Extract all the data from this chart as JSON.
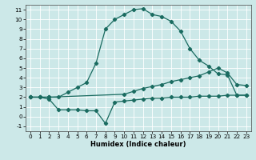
{
  "title": "",
  "xlabel": "Humidex (Indice chaleur)",
  "ylabel": "",
  "bg_color": "#cce8e8",
  "grid_color": "#ffffff",
  "line_color": "#1a6b60",
  "xlim": [
    -0.5,
    23.5
  ],
  "ylim": [
    -1.5,
    11.5
  ],
  "xticks": [
    0,
    1,
    2,
    3,
    4,
    5,
    6,
    7,
    8,
    9,
    10,
    11,
    12,
    13,
    14,
    15,
    16,
    17,
    18,
    19,
    20,
    21,
    22,
    23
  ],
  "yticks": [
    -1,
    0,
    1,
    2,
    3,
    4,
    5,
    6,
    7,
    8,
    9,
    10,
    11
  ],
  "curve1_x": [
    0,
    1,
    2,
    3,
    4,
    5,
    6,
    7,
    8,
    9,
    10,
    11,
    12,
    13,
    14,
    15,
    16,
    17,
    18,
    19,
    20,
    21,
    22,
    23
  ],
  "curve1_y": [
    2.0,
    2.0,
    2.0,
    2.0,
    2.5,
    3.0,
    3.5,
    5.5,
    9.0,
    10.0,
    10.5,
    11.0,
    11.1,
    10.5,
    10.3,
    9.8,
    8.8,
    7.0,
    5.8,
    5.2,
    4.4,
    4.3,
    2.2,
    2.2
  ],
  "curve2_x": [
    0,
    1,
    2,
    10,
    11,
    12,
    13,
    14,
    15,
    16,
    17,
    18,
    19,
    20,
    21,
    22,
    23
  ],
  "curve2_y": [
    2.0,
    2.0,
    2.0,
    2.3,
    2.6,
    2.9,
    3.1,
    3.3,
    3.6,
    3.8,
    4.0,
    4.2,
    4.6,
    5.0,
    4.5,
    3.3,
    3.2
  ],
  "curve3_x": [
    0,
    1,
    2,
    3,
    4,
    5,
    6,
    7,
    8,
    9,
    10,
    11,
    12,
    13,
    14,
    15,
    16,
    17,
    18,
    19,
    20,
    21,
    22,
    23
  ],
  "curve3_y": [
    2.0,
    2.0,
    1.8,
    0.7,
    0.7,
    0.7,
    0.6,
    0.6,
    -0.7,
    1.5,
    1.6,
    1.7,
    1.8,
    1.9,
    1.9,
    2.0,
    2.0,
    2.0,
    2.1,
    2.1,
    2.1,
    2.2,
    2.2,
    2.2
  ],
  "xlabel_fontsize": 6.0,
  "tick_fontsize": 5.2
}
